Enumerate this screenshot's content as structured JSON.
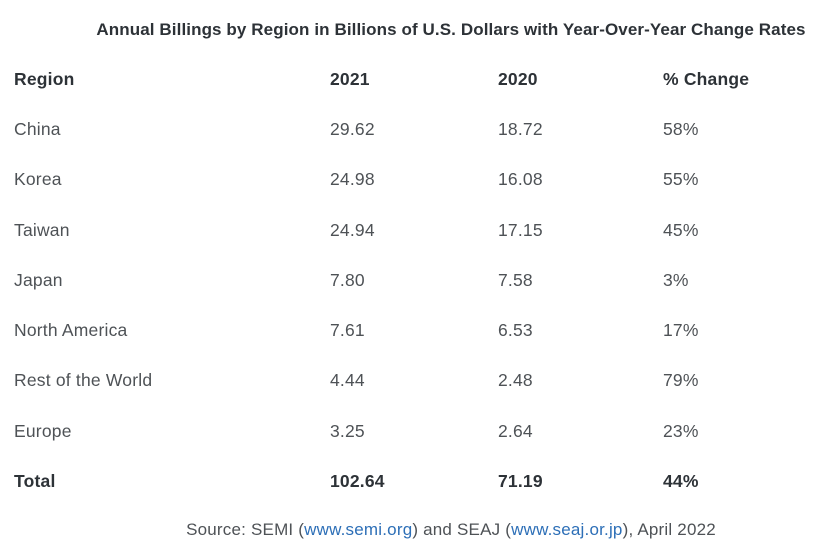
{
  "title": "Annual Billings by Region in Billions of U.S. Dollars with Year-Over-Year Change Rates",
  "table": {
    "columns": {
      "region": "Region",
      "y2021": "2021",
      "y2020": "2020",
      "change": "% Change"
    },
    "rows": [
      {
        "region": "China",
        "y2021": "29.62",
        "y2020": "18.72",
        "change": "58%"
      },
      {
        "region": "Korea",
        "y2021": "24.98",
        "y2020": "16.08",
        "change": "55%"
      },
      {
        "region": "Taiwan",
        "y2021": "24.94",
        "y2020": "17.15",
        "change": "45%"
      },
      {
        "region": "Japan",
        "y2021": "7.80",
        "y2020": "7.58",
        "change": "3%"
      },
      {
        "region": "North America",
        "y2021": "7.61",
        "y2020": "6.53",
        "change": "17%"
      },
      {
        "region": "Rest of the World",
        "y2021": "4.44",
        "y2020": "2.48",
        "change": "79%"
      },
      {
        "region": "Europe",
        "y2021": "3.25",
        "y2020": "2.64",
        "change": "23%"
      }
    ],
    "total": {
      "region": "Total",
      "y2021": "102.64",
      "y2020": "71.19",
      "change": "44%"
    }
  },
  "source": {
    "prefix": "Source: SEMI (",
    "link1": "www.semi.org",
    "middle": ") and SEAJ (",
    "link2": "www.seaj.or.jp",
    "suffix": "), April 2022"
  },
  "colors": {
    "heading_text": "#2d3237",
    "body_text": "#4e5256",
    "link": "#2d6fb7",
    "background": "#ffffff"
  },
  "chart_data": {
    "type": "table",
    "title": "Annual Billings by Region in Billions of U.S. Dollars with Year-Over-Year Change Rates",
    "units": "Billions of U.S. Dollars",
    "columns": [
      "Region",
      "2021",
      "2020",
      "% Change"
    ],
    "rows": [
      [
        "China",
        29.62,
        18.72,
        "58%"
      ],
      [
        "Korea",
        24.98,
        16.08,
        "55%"
      ],
      [
        "Taiwan",
        24.94,
        17.15,
        "45%"
      ],
      [
        "Japan",
        7.8,
        7.58,
        "3%"
      ],
      [
        "North America",
        7.61,
        6.53,
        "17%"
      ],
      [
        "Rest of the World",
        4.44,
        2.48,
        "79%"
      ],
      [
        "Europe",
        3.25,
        2.64,
        "23%"
      ],
      [
        "Total",
        102.64,
        71.19,
        "44%"
      ]
    ],
    "source": "Source: SEMI (www.semi.org) and SEAJ (www.seaj.or.jp), April 2022"
  }
}
